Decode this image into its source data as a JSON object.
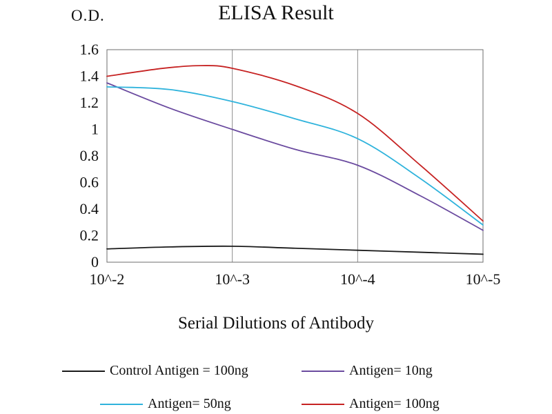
{
  "header": {
    "od_label": "O.D.",
    "title": "ELISA Result"
  },
  "chart_data": {
    "type": "line",
    "title": "ELISA Result",
    "ylabel": "O.D.",
    "xlabel": "Serial Dilutions of Antibody",
    "x_tick_labels": [
      "10^-2",
      "10^-3",
      "10^-4",
      "10^-5"
    ],
    "y_ticks": [
      0,
      0.2,
      0.4,
      0.6,
      0.8,
      1,
      1.2,
      1.4,
      1.6
    ],
    "ylim": [
      0,
      1.6
    ],
    "grid": "vertical-only",
    "legend_position": "bottom",
    "series": [
      {
        "name": "Control Antigen = 100ng",
        "color": "#1a1a1a",
        "x": [
          0,
          0.5,
          1,
          1.5,
          2,
          2.5,
          3
        ],
        "y": [
          0.1,
          0.115,
          0.12,
          0.105,
          0.09,
          0.075,
          0.06
        ]
      },
      {
        "name": "Antigen= 10ng",
        "color": "#6a4a9f",
        "x": [
          0,
          0.5,
          1,
          1.5,
          2,
          2.5,
          3
        ],
        "y": [
          1.35,
          1.16,
          1.0,
          0.85,
          0.73,
          0.5,
          0.24
        ]
      },
      {
        "name": "Antigen= 50ng",
        "color": "#2fb3dc",
        "x": [
          0,
          0.5,
          1,
          1.5,
          2,
          2.5,
          3
        ],
        "y": [
          1.32,
          1.3,
          1.21,
          1.08,
          0.93,
          0.63,
          0.28
        ]
      },
      {
        "name": "Antigen= 100ng",
        "color": "#c62222",
        "x": [
          0,
          0.45,
          0.75,
          1,
          1.5,
          2,
          2.5,
          3
        ],
        "y": [
          1.4,
          1.46,
          1.48,
          1.46,
          1.33,
          1.12,
          0.73,
          0.31
        ]
      }
    ]
  }
}
